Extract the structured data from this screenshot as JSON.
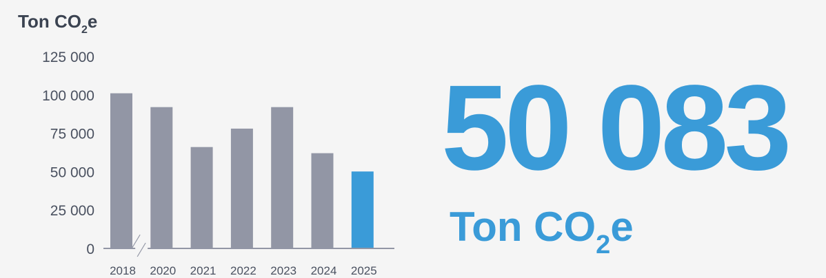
{
  "chart_data": {
    "type": "bar",
    "unit_prefix": "Ton CO",
    "unit_subscript": "2",
    "unit_suffix": "e",
    "categories": [
      "2018",
      "2020",
      "2021",
      "2022",
      "2023",
      "2024",
      "2025"
    ],
    "values": [
      101000,
      92000,
      66000,
      78000,
      92000,
      62000,
      50083
    ],
    "highlight_index": 6,
    "ylim": [
      0,
      125000
    ],
    "yticks": [
      {
        "value": 0,
        "label": "0"
      },
      {
        "value": 25000,
        "label": "25 000"
      },
      {
        "value": 50000,
        "label": "50 000"
      },
      {
        "value": 75000,
        "label": "75 000"
      },
      {
        "value": 100000,
        "label": "100 000"
      },
      {
        "value": 125000,
        "label": "125 000"
      }
    ],
    "axis_break_after": "2018",
    "grid": false,
    "colors": {
      "bar": "#9296a5",
      "highlight": "#3a9bd8",
      "axis": "#9296a5"
    }
  },
  "headline": {
    "value": "50 083",
    "unit_prefix": "Ton CO",
    "unit_subscript": "2",
    "unit_suffix": "e",
    "color": "#3a9bd8"
  }
}
